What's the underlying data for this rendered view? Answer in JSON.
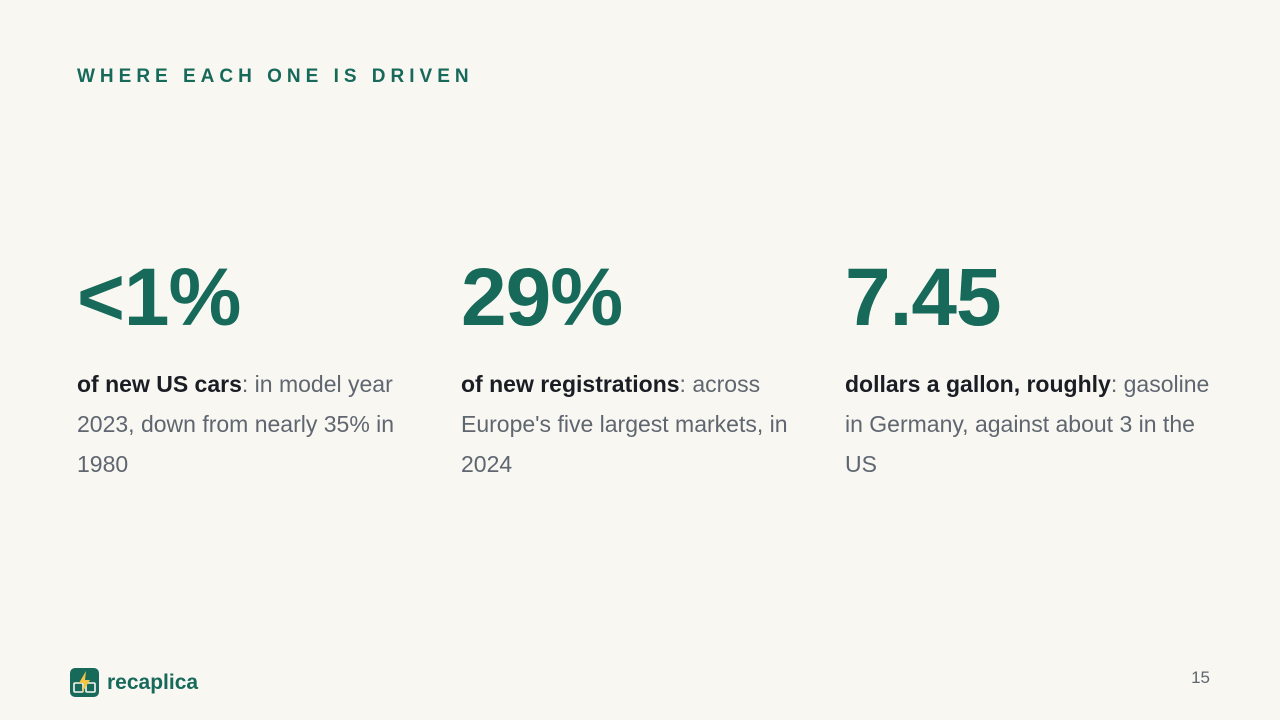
{
  "header": {
    "eyebrow": "WHERE EACH ONE IS DRIVEN"
  },
  "stats": [
    {
      "value": "<1%",
      "lead": "of new US cars",
      "text": ": in model year 2023, down from nearly 35% in 1980"
    },
    {
      "value": "29%",
      "lead": "of new registrations",
      "text": ": across Europe's five largest markets, in 2024"
    },
    {
      "value": "7.45",
      "lead": "dollars a gallon, roughly",
      "text": ": gasoline in Germany, against about 3 in the US"
    }
  ],
  "footer": {
    "brand": "recaplica",
    "page_number": "15"
  }
}
